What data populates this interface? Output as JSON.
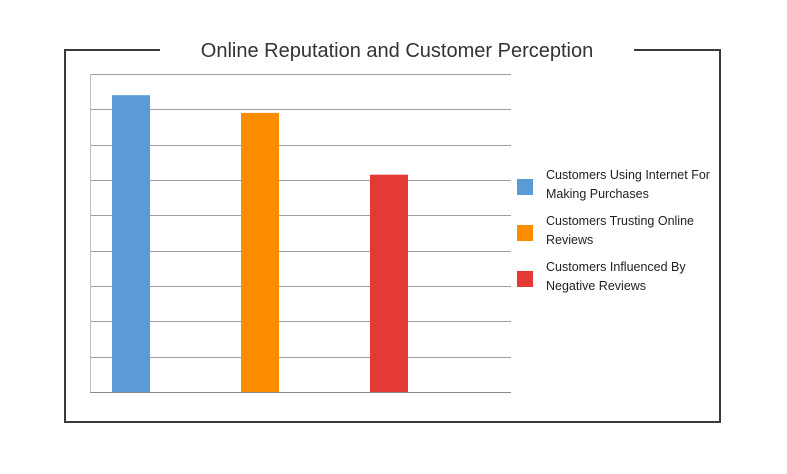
{
  "chart_data": {
    "type": "bar",
    "title": "Online Reputation and Customer Perception",
    "categories": [
      "Customers Using Internet For Making Purchases",
      "Customers Trusting Online Reviews",
      "Customers Influenced By Negative Reviews"
    ],
    "values": [
      84,
      79,
      61.5
    ],
    "colors": [
      "#5b9bd5",
      "#fb8c00",
      "#e53935"
    ],
    "ylim": [
      0,
      90
    ],
    "grid": true,
    "axis_ticks_shown": false,
    "legend_position": "right"
  }
}
